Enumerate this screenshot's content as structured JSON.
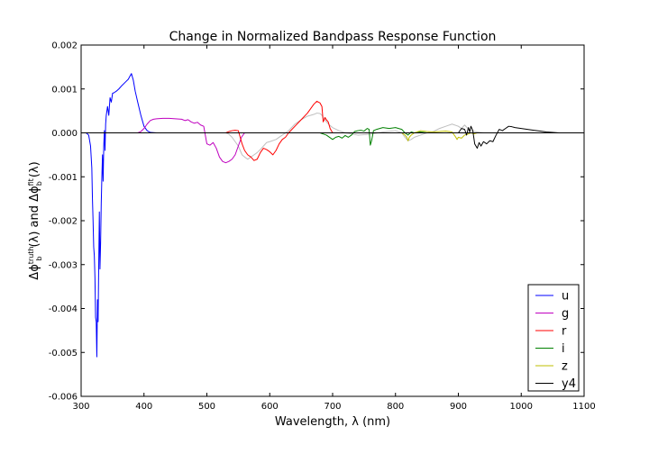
{
  "chart_data": {
    "type": "line",
    "title": "Change in Normalized Bandpass Response Function",
    "xlabel": "Wavelength, λ (nm)",
    "ylabel_parts": {
      "pre": "Δϕ",
      "sub1": "b",
      "sup1": "truth",
      "mid": "(λ) and Δϕ",
      "sub2": "b",
      "sup2": "fit",
      "post": "(λ)"
    },
    "xlim": [
      300,
      1100
    ],
    "ylim": [
      -0.006,
      0.002
    ],
    "xticks": [
      300,
      400,
      500,
      600,
      700,
      800,
      900,
      1000,
      1100
    ],
    "yticks": [
      -0.006,
      -0.005,
      -0.004,
      -0.003,
      -0.002,
      -0.001,
      0.0,
      0.001,
      0.002
    ],
    "ytick_labels": [
      "-0.006",
      "-0.005",
      "-0.004",
      "-0.003",
      "-0.002",
      "-0.001",
      "0.000",
      "0.001",
      "0.002"
    ],
    "legend_position": "lower-right",
    "grid": false,
    "series": [
      {
        "name": "u",
        "color": "#0000ff",
        "role": "truth",
        "x": [
          308,
          312,
          315,
          317,
          318,
          319,
          320,
          321,
          322,
          323,
          324,
          325,
          326,
          327,
          328,
          329,
          330,
          331,
          332,
          333,
          334,
          335,
          336,
          337,
          338,
          339,
          340,
          342,
          344,
          346,
          348,
          350,
          353,
          356,
          360,
          365,
          370,
          375,
          378,
          380,
          383,
          386,
          390,
          395,
          400,
          405,
          410,
          420
        ],
        "y": [
          0.0,
          -5e-05,
          -0.0003,
          -0.0008,
          -0.0015,
          -0.002,
          -0.0026,
          -0.0028,
          -0.0033,
          -0.0042,
          -0.0043,
          -0.0051,
          -0.0038,
          -0.0043,
          -0.003,
          -0.0018,
          -0.0031,
          -0.0025,
          -0.0016,
          -0.001,
          -0.0005,
          -0.0011,
          -0.0003,
          5e-05,
          -0.0004,
          0.0002,
          0.0004,
          0.0006,
          0.0004,
          0.0008,
          0.0007,
          0.0009,
          0.00092,
          0.00095,
          0.001,
          0.00108,
          0.00115,
          0.00122,
          0.0013,
          0.00135,
          0.0012,
          0.00095,
          0.0007,
          0.0004,
          0.00015,
          5e-05,
          1e-05,
          0.0
        ]
      },
      {
        "name": "g",
        "color": "#bf00bf",
        "role": "truth",
        "x": [
          390,
          395,
          400,
          405,
          410,
          415,
          420,
          430,
          440,
          450,
          460,
          465,
          470,
          475,
          480,
          485,
          490,
          495,
          500,
          505,
          510,
          515,
          520,
          525,
          530,
          535,
          540,
          545,
          550,
          555,
          560
        ],
        "y": [
          0.0,
          3e-05,
          0.0001,
          0.0002,
          0.00028,
          0.00031,
          0.00032,
          0.00033,
          0.00033,
          0.00032,
          0.00031,
          0.00028,
          0.0003,
          0.00025,
          0.00022,
          0.00024,
          0.00018,
          0.00015,
          -0.00025,
          -0.00028,
          -0.00022,
          -0.00035,
          -0.00055,
          -0.00065,
          -0.00068,
          -0.00065,
          -0.0006,
          -0.0005,
          -0.0003,
          -0.0001,
          0.0
        ]
      },
      {
        "name": "r",
        "color": "#ff0000",
        "role": "truth",
        "x": [
          530,
          535,
          540,
          545,
          550,
          553,
          556,
          560,
          565,
          570,
          575,
          580,
          585,
          590,
          595,
          600,
          605,
          610,
          615,
          620,
          625,
          630,
          640,
          650,
          660,
          665,
          670,
          675,
          680,
          683,
          685,
          688,
          690,
          693,
          696,
          700
        ],
        "y": [
          0.0,
          3e-05,
          5e-05,
          6e-05,
          5e-05,
          -0.0001,
          -0.00025,
          -0.0004,
          -0.0005,
          -0.00055,
          -0.00063,
          -0.0006,
          -0.00045,
          -0.00035,
          -0.00038,
          -0.00043,
          -0.0005,
          -0.0004,
          -0.00025,
          -0.00015,
          -0.0001,
          0.0,
          0.00015,
          0.0003,
          0.00045,
          0.00055,
          0.00065,
          0.00072,
          0.00068,
          0.0006,
          0.00025,
          0.00035,
          0.0003,
          0.00025,
          0.0001,
          0.0
        ]
      },
      {
        "name": "i",
        "color": "#008000",
        "role": "truth",
        "x": [
          680,
          690,
          700,
          705,
          710,
          715,
          720,
          725,
          730,
          735,
          740,
          745,
          750,
          755,
          758,
          760,
          762,
          765,
          770,
          775,
          780,
          790,
          800,
          810,
          815,
          820,
          825,
          830,
          840,
          850
        ],
        "y": [
          0.0,
          -5e-05,
          -0.00015,
          -0.0001,
          -8e-05,
          -0.00012,
          -6e-05,
          -0.0001,
          -5e-05,
          3e-05,
          5e-05,
          6e-05,
          4e-05,
          0.0001,
          8e-05,
          -0.00028,
          -0.00018,
          5e-05,
          8e-05,
          0.0001,
          0.00012,
          0.0001,
          0.00012,
          8e-05,
          0.0,
          -5e-05,
          2e-05,
          0.0,
          2e-05,
          0.0
        ]
      },
      {
        "name": "z",
        "color": "#bfbf00",
        "role": "truth",
        "x": [
          810,
          815,
          818,
          820,
          822,
          825,
          830,
          840,
          850,
          860,
          870,
          880,
          890,
          895,
          898,
          900,
          905,
          910,
          915,
          920,
          925,
          930,
          940,
          950
        ],
        "y": [
          0.0,
          -5e-05,
          -0.0001,
          -0.00018,
          -0.0001,
          -5e-05,
          0.0,
          5e-05,
          3e-05,
          2e-05,
          3e-05,
          4e-05,
          2e-05,
          -8e-05,
          -0.00015,
          -0.0001,
          -0.00012,
          -5e-05,
          -3e-05,
          0.0,
          -2e-05,
          0.0,
          0.0,
          0.0
        ]
      },
      {
        "name": "y4",
        "color": "#000000",
        "role": "truth",
        "x": [
          900,
          905,
          910,
          913,
          916,
          918,
          920,
          923,
          926,
          928,
          930,
          933,
          936,
          940,
          945,
          950,
          955,
          960,
          965,
          970,
          975,
          980,
          985,
          990,
          1000,
          1010,
          1020,
          1030,
          1040,
          1050,
          1060,
          1070
        ],
        "y": [
          0.0,
          0.0001,
          8e-05,
          -5e-05,
          0.00012,
          2e-05,
          0.00015,
          5e-05,
          -0.00025,
          -0.0003,
          -0.00035,
          -0.00022,
          -0.0003,
          -0.0002,
          -0.00025,
          -0.00018,
          -0.0002,
          -5e-05,
          8e-05,
          5e-05,
          0.0001,
          0.00015,
          0.00014,
          0.00012,
          0.0001,
          8e-05,
          6e-05,
          4e-05,
          2e-05,
          1e-05,
          0.0,
          0.0
        ]
      },
      {
        "name": "",
        "color": "#bfbfbf",
        "role": "fit",
        "x": [
          530,
          535,
          540,
          545,
          550,
          553,
          556,
          560,
          565,
          570,
          575,
          580,
          585,
          590,
          595,
          600,
          610,
          620,
          630,
          640,
          650,
          660,
          670,
          675,
          680,
          683,
          685,
          688,
          690,
          695,
          700,
          710,
          720,
          740,
          760,
          780,
          800,
          810,
          815,
          820,
          825,
          830,
          840,
          850,
          860,
          870,
          880,
          890,
          900,
          905,
          910,
          915,
          920,
          930,
          940,
          950
        ],
        "y": [
          0.0,
          -3e-05,
          -0.0001,
          -0.0002,
          -0.0003,
          -0.0004,
          -0.0005,
          -0.00055,
          -0.0006,
          -0.00055,
          -0.0005,
          -0.00045,
          -0.00038,
          -0.0003,
          -0.00022,
          -0.0002,
          -0.00015,
          -5e-05,
          5e-05,
          0.0002,
          0.0003,
          0.00038,
          0.00042,
          0.00045,
          0.00044,
          0.0004,
          0.00035,
          0.0003,
          0.00025,
          0.00018,
          0.00012,
          5e-05,
          0.0,
          -5e-05,
          -3e-05,
          2e-05,
          5e-05,
          0.0,
          -0.0001,
          -0.00018,
          -0.00015,
          -0.0001,
          -5e-05,
          0.0,
          3e-05,
          0.0001,
          0.00015,
          0.0002,
          0.00015,
          0.0001,
          0.00018,
          0.0001,
          5e-05,
          2e-05,
          0.0,
          0.0
        ]
      }
    ]
  }
}
